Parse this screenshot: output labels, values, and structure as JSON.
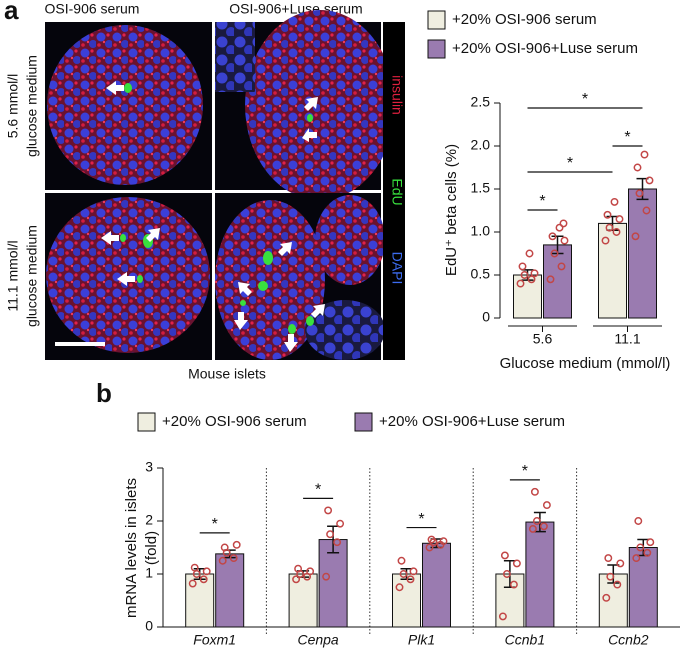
{
  "figure": {
    "panel_a_label": "a",
    "panel_b_label": "b",
    "column_headers": [
      "OSI-906 serum",
      "OSI-906+Luse serum"
    ],
    "row_labels": [
      [
        "5.6 mmol/l",
        "glucose medium"
      ],
      [
        "11.1 mmol/l",
        "glucose medium"
      ]
    ],
    "stain_labels": [
      "insulin",
      "EdU",
      "DAPI"
    ],
    "caption": "Mouse islets"
  },
  "chart_data": [
    {
      "type": "bar",
      "y_label": "EdU⁺ beta cells (%)",
      "x_label": "Glucose medium (mmol/l)",
      "categories": [
        "5.6",
        "11.1"
      ],
      "series": [
        {
          "name": "+20% OSI-906 serum",
          "color": "#efeee0",
          "values": [
            0.5,
            1.1
          ],
          "errors": [
            0.06,
            0.08
          ],
          "points": [
            [
              0.4,
              0.45,
              0.5,
              0.52,
              0.6,
              0.75
            ],
            [
              0.9,
              1.0,
              1.05,
              1.15,
              1.2,
              1.35
            ]
          ]
        },
        {
          "name": "+20% OSI-906+Luse serum",
          "color": "#9a7bb0",
          "values": [
            0.85,
            1.5
          ],
          "errors": [
            0.1,
            0.12
          ],
          "points": [
            [
              0.45,
              0.6,
              0.75,
              0.9,
              0.95,
              1.05,
              1.1
            ],
            [
              0.95,
              1.25,
              1.45,
              1.6,
              1.75,
              1.9
            ]
          ]
        }
      ],
      "significance": [
        "*",
        "*",
        "*",
        "*"
      ],
      "ylim": [
        0,
        2.5
      ],
      "yticks": [
        0,
        0.5,
        {
          "value": 1,
          "label": "1.0"
        },
        1.5,
        {
          "value": 2,
          "label": "2.0"
        },
        2.5
      ]
    },
    {
      "type": "bar",
      "y_label": [
        "mRNA levels in islets",
        "(fold)"
      ],
      "categories": [
        "Foxm1",
        "Cenpa",
        "Plk1",
        "Ccnb1",
        "Ccnb2"
      ],
      "series": [
        {
          "name": "+20% OSI-906 serum",
          "color": "#efeee0",
          "values": [
            1,
            1,
            1,
            1,
            1
          ],
          "errors": [
            0.1,
            0.06,
            0.1,
            0.25,
            0.17
          ],
          "points": [
            [
              0.82,
              0.9,
              1.0,
              1.05,
              1.12
            ],
            [
              0.9,
              0.95,
              1.0,
              1.05,
              1.1
            ],
            [
              0.75,
              0.9,
              1.0,
              1.05,
              1.25
            ],
            [
              0.2,
              0.8,
              1.0,
              1.2,
              1.35
            ],
            [
              0.55,
              0.8,
              0.95,
              1.2,
              1.3
            ]
          ]
        },
        {
          "name": "+20% OSI-906+Luse serum",
          "color": "#9a7bb0",
          "values": [
            1.38,
            1.65,
            1.58,
            1.98,
            1.5
          ],
          "errors": [
            0.07,
            0.25,
            0.08,
            0.18,
            0.15
          ],
          "points": [
            [
              1.25,
              1.3,
              1.4,
              1.55,
              1.5
            ],
            [
              0.95,
              1.6,
              1.75,
              1.95,
              2.2
            ],
            [
              1.5,
              1.55,
              1.6,
              1.62,
              1.65
            ],
            [
              1.85,
              1.9,
              2.0,
              2.3,
              2.55
            ],
            [
              1.3,
              1.4,
              1.5,
              1.6,
              2.0
            ]
          ]
        }
      ],
      "significance": [
        "*",
        "*",
        "*",
        "*"
      ],
      "ylim": [
        0,
        3
      ],
      "yticks": [
        0,
        1,
        2,
        3
      ]
    }
  ]
}
